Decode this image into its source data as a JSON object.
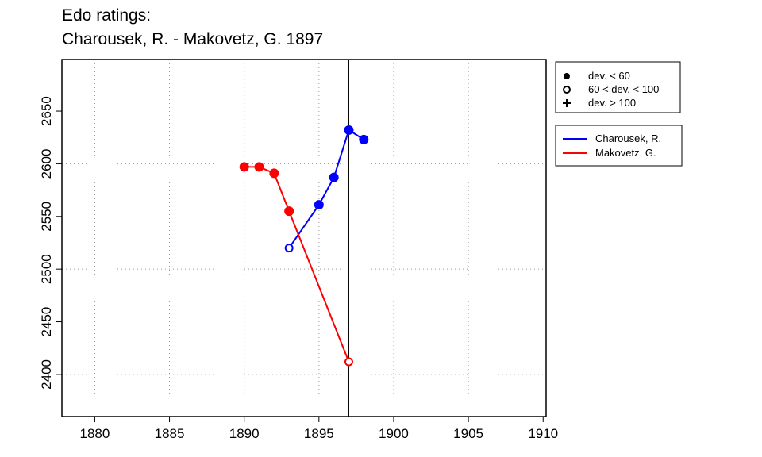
{
  "chart_data": {
    "type": "line",
    "title": [
      "Edo ratings:",
      "Charousek, R. - Makovetz, G. 1897"
    ],
    "xlabel": "",
    "ylabel": "",
    "xlim": [
      1877.8,
      1910.2
    ],
    "ylim": [
      2360,
      2699
    ],
    "xticks": [
      1880,
      1885,
      1890,
      1895,
      1900,
      1905,
      1910
    ],
    "yticks": [
      2400,
      2450,
      2500,
      2550,
      2600,
      2650
    ],
    "xgrid": [
      1880,
      1885,
      1890,
      1895,
      1900,
      1905
    ],
    "ygrid": [
      2400,
      2500,
      2600
    ],
    "vline": 1897,
    "series": [
      {
        "name": "Charousek, R.",
        "color": "#0000ff",
        "x": [
          1893,
          1895,
          1896,
          1897,
          1898
        ],
        "y": [
          2520,
          2561,
          2587,
          2632,
          2623
        ],
        "marker": [
          "open",
          "filled",
          "filled",
          "filled",
          "filled"
        ]
      },
      {
        "name": "Makovetz, G.",
        "color": "#ff0000",
        "x": [
          1890,
          1891,
          1892,
          1893,
          1897
        ],
        "y": [
          2597,
          2597,
          2591,
          2555,
          2412
        ],
        "marker": [
          "filled",
          "filled",
          "filled",
          "filled",
          "open"
        ]
      }
    ],
    "marker_legend": [
      {
        "symbol": "filled",
        "label": "dev. < 60"
      },
      {
        "symbol": "open",
        "label": "60 < dev. < 100"
      },
      {
        "symbol": "plus",
        "label": "dev. > 100"
      }
    ],
    "legend_placement": "right"
  }
}
